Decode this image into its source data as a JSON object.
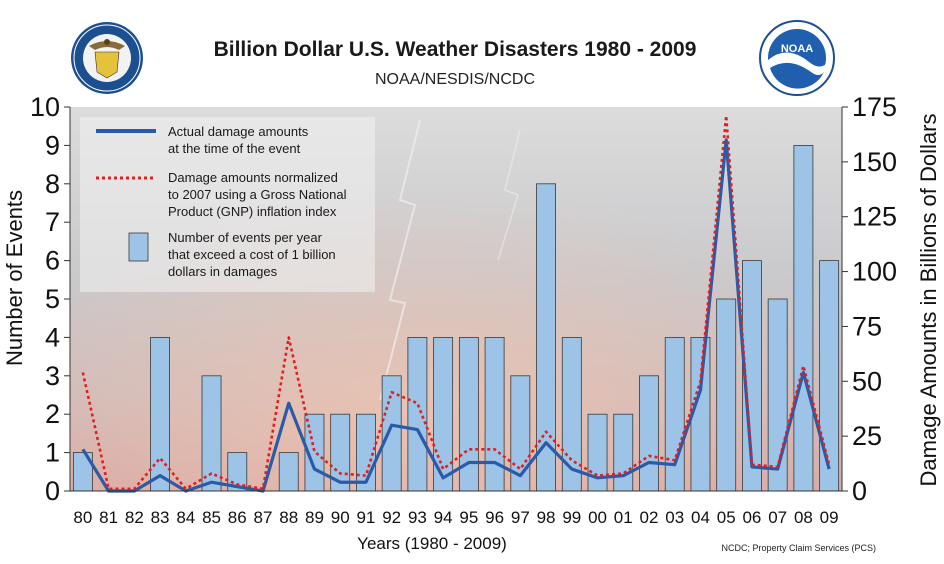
{
  "header": {
    "title": "Billion Dollar U.S. Weather Disasters 1980 - 2009",
    "subtitle": "NOAA/NESDIS/NCDC"
  },
  "logos": {
    "left": "department-of-commerce-seal",
    "right": "noaa-logo",
    "right_text": "NOAA"
  },
  "source_note": "NCDC; Property Claim Services (PCS)",
  "chart_data": {
    "type": "bar",
    "title": "Billion Dollar U.S. Weather Disasters 1980 - 2009",
    "subtitle": "NOAA/NESDIS/NCDC",
    "xlabel": "Years (1980 - 2009)",
    "ylabel": "Number of Events",
    "y2label": "Damage Amounts in Billions of Dollars",
    "ylim": [
      0,
      10
    ],
    "y2lim": [
      0,
      175
    ],
    "yticks": [
      "0",
      "1",
      "2",
      "3",
      "4",
      "5",
      "6",
      "7",
      "8",
      "9",
      "10"
    ],
    "y2ticks": [
      "0",
      "25",
      "50",
      "75",
      "100",
      "125",
      "150",
      "175"
    ],
    "categories": [
      "80",
      "81",
      "82",
      "83",
      "84",
      "85",
      "86",
      "87",
      "88",
      "89",
      "90",
      "91",
      "92",
      "93",
      "94",
      "95",
      "96",
      "97",
      "98",
      "99",
      "00",
      "01",
      "02",
      "03",
      "04",
      "05",
      "06",
      "07",
      "08",
      "09"
    ],
    "legend_position": "top-left",
    "series": [
      {
        "name": "Number of events per year that exceed a cost of 1 billion dollars in damages",
        "type": "bar",
        "axis": "left",
        "color": "#9dc3e6",
        "values": [
          1,
          0,
          0,
          4,
          0,
          3,
          1,
          0,
          1,
          2,
          2,
          2,
          3,
          4,
          4,
          4,
          4,
          3,
          8,
          4,
          2,
          2,
          3,
          4,
          4,
          5,
          6,
          5,
          9,
          6
        ]
      },
      {
        "name": "Actual damage amounts at the time of the event",
        "type": "line",
        "axis": "right",
        "color": "#2a5aa8",
        "values": [
          19,
          0,
          0,
          7,
          0,
          4,
          2,
          0,
          40,
          10,
          4,
          4,
          30,
          28,
          6,
          13,
          13,
          7,
          22,
          10,
          6,
          7,
          13,
          12,
          46,
          160,
          11,
          10,
          54,
          10
        ]
      },
      {
        "name": "Damage amounts normalized to 2007 using a Gross National Product (GNP) inflation index",
        "type": "line",
        "axis": "right",
        "color": "#e02020",
        "values": [
          54,
          1,
          1,
          15,
          1,
          8,
          3,
          1,
          70,
          18,
          8,
          7,
          45,
          40,
          10,
          19,
          19,
          10,
          27,
          14,
          7,
          8,
          16,
          14,
          50,
          171,
          12,
          11,
          57,
          12
        ]
      }
    ],
    "legend": [
      {
        "key": "actual",
        "lines": [
          "Actual damage amounts",
          "at the time of the event"
        ]
      },
      {
        "key": "normalized",
        "lines": [
          "Damage amounts normalized",
          "to 2007 using a Gross National",
          "Product (GNP) inflation index"
        ]
      },
      {
        "key": "events",
        "lines": [
          "Number of events per year",
          "that exceed a cost of 1 billion",
          "dollars in damages"
        ]
      }
    ]
  }
}
